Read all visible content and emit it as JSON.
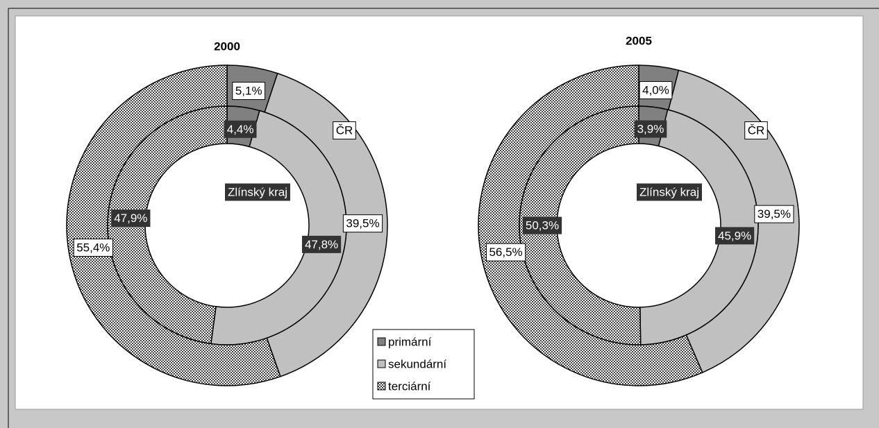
{
  "chart_data": [
    {
      "type": "donut",
      "title": "2000",
      "rings": [
        {
          "name": "ČR",
          "values": [
            5.1,
            39.5,
            55.4
          ],
          "value_labels": [
            "5,1%",
            "39,5%",
            "55,4%"
          ]
        },
        {
          "name": "Zlínský kraj",
          "values": [
            4.4,
            47.8,
            47.9
          ],
          "value_labels": [
            "4,4%",
            "47,8%",
            "47,9%"
          ]
        }
      ]
    },
    {
      "type": "donut",
      "title": "2005",
      "rings": [
        {
          "name": "ČR",
          "values": [
            4.0,
            39.5,
            56.5
          ],
          "value_labels": [
            "4,0%",
            "39,5%",
            "56,5%"
          ]
        },
        {
          "name": "Zlínský kraj",
          "values": [
            3.9,
            45.9,
            50.3
          ],
          "value_labels": [
            "3,9%",
            "45,9%",
            "50,3%"
          ]
        }
      ]
    }
  ],
  "legend": {
    "categories": [
      "primární",
      "sekundární",
      "terciární"
    ],
    "colors": [
      "#808080",
      "#c0c0c0",
      "#404040"
    ]
  }
}
